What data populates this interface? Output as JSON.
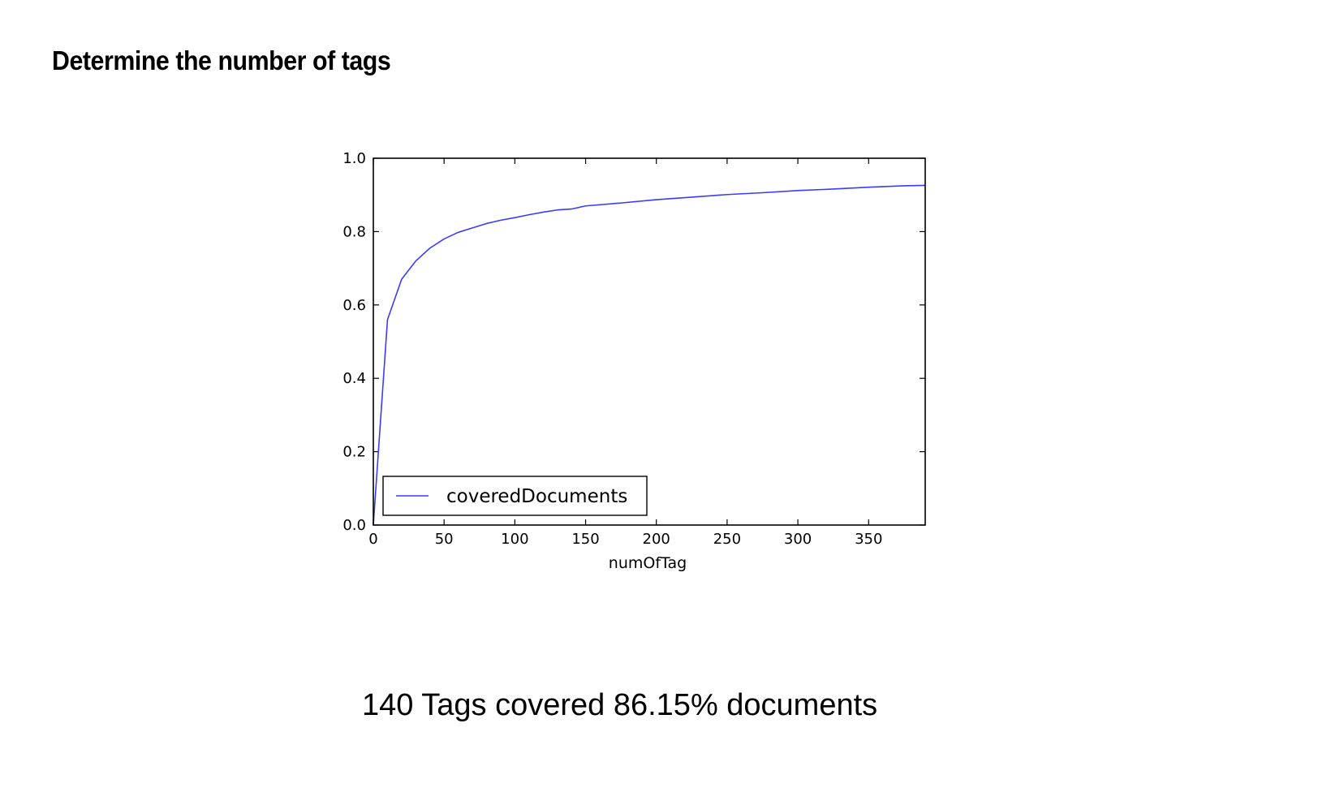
{
  "slide": {
    "title": "Determine the number of tags",
    "caption": "140 Tags covered 86.15% documents"
  },
  "chart_data": {
    "type": "line",
    "title": "",
    "xlabel": "numOfTag",
    "ylabel": "",
    "xlim": [
      0,
      390
    ],
    "ylim": [
      0.0,
      1.0
    ],
    "x_ticks": [
      0,
      50,
      100,
      150,
      200,
      250,
      300,
      350
    ],
    "x_tick_labels": [
      "0",
      "50",
      "100",
      "150",
      "200",
      "250",
      "300",
      "350"
    ],
    "y_ticks": [
      0.0,
      0.2,
      0.4,
      0.6,
      0.8,
      1.0
    ],
    "y_tick_labels": [
      "0.0",
      "0.2",
      "0.4",
      "0.6",
      "0.8",
      "1.0"
    ],
    "grid": false,
    "legend_position": "lower-left",
    "series": [
      {
        "name": "coveredDocuments",
        "color": "#3b3bff",
        "x": [
          0,
          10,
          20,
          30,
          40,
          50,
          60,
          70,
          80,
          90,
          100,
          110,
          120,
          130,
          140,
          150,
          175,
          200,
          225,
          250,
          275,
          300,
          325,
          350,
          375,
          390
        ],
        "y": [
          0.0,
          0.56,
          0.67,
          0.72,
          0.755,
          0.78,
          0.798,
          0.81,
          0.822,
          0.831,
          0.838,
          0.846,
          0.853,
          0.859,
          0.8615,
          0.87,
          0.878,
          0.887,
          0.894,
          0.901,
          0.906,
          0.912,
          0.916,
          0.921,
          0.925,
          0.926
        ]
      }
    ]
  }
}
